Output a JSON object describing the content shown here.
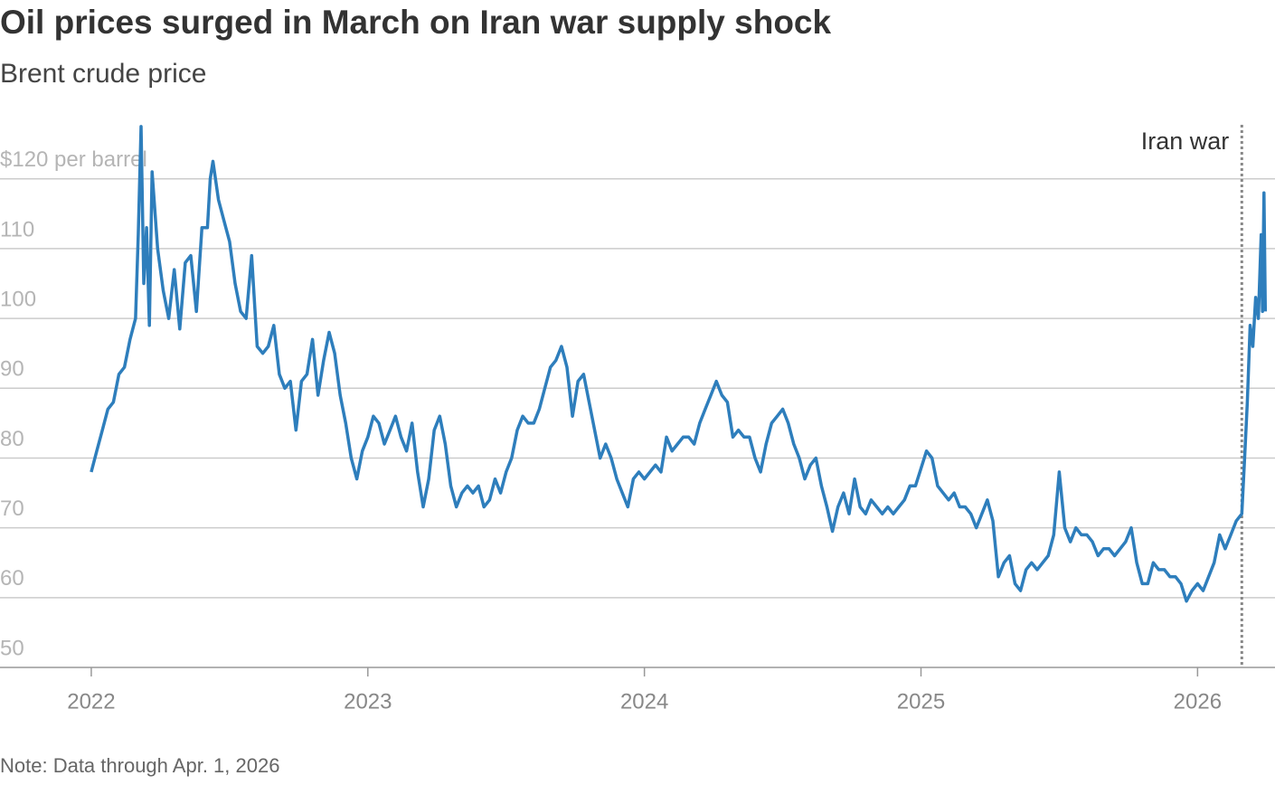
{
  "chart_data": {
    "type": "line",
    "title": "Oil prices surged in March on Iran war supply shock",
    "subtitle": "Brent crude price",
    "note": "Note: Data through Apr. 1, 2026",
    "color": "#2e7ebc",
    "grid": true,
    "xlim": [
      2021.67,
      2026.28
    ],
    "ylim": [
      50,
      128
    ],
    "xticks": [
      2022,
      2023,
      2024,
      2025,
      2026
    ],
    "yticks": [
      50,
      60,
      70,
      80,
      90,
      100,
      110,
      {
        "value": 120,
        "label": "$120 per barrel"
      }
    ],
    "annotation": {
      "text": "Iran war",
      "x": 2026.16
    },
    "x": [
      2022,
      2022.02,
      2022.04,
      2022.06,
      2022.08,
      2022.1,
      2022.12,
      2022.14,
      2022.16,
      2022.17,
      2022.18,
      2022.19,
      2022.2,
      2022.21,
      2022.22,
      2022.24,
      2022.26,
      2022.28,
      2022.3,
      2022.32,
      2022.34,
      2022.36,
      2022.38,
      2022.4,
      2022.42,
      2022.43,
      2022.44,
      2022.46,
      2022.48,
      2022.5,
      2022.52,
      2022.54,
      2022.56,
      2022.58,
      2022.6,
      2022.62,
      2022.64,
      2022.66,
      2022.68,
      2022.7,
      2022.72,
      2022.74,
      2022.76,
      2022.78,
      2022.8,
      2022.82,
      2022.84,
      2022.86,
      2022.88,
      2022.9,
      2022.92,
      2022.94,
      2022.96,
      2022.98,
      2023,
      2023.02,
      2023.04,
      2023.06,
      2023.08,
      2023.1,
      2023.12,
      2023.14,
      2023.16,
      2023.18,
      2023.2,
      2023.22,
      2023.24,
      2023.26,
      2023.28,
      2023.3,
      2023.32,
      2023.34,
      2023.36,
      2023.38,
      2023.4,
      2023.42,
      2023.44,
      2023.46,
      2023.48,
      2023.5,
      2023.52,
      2023.54,
      2023.56,
      2023.58,
      2023.6,
      2023.62,
      2023.64,
      2023.66,
      2023.68,
      2023.7,
      2023.72,
      2023.74,
      2023.76,
      2023.78,
      2023.8,
      2023.82,
      2023.84,
      2023.86,
      2023.88,
      2023.9,
      2023.92,
      2023.94,
      2023.96,
      2023.98,
      2024,
      2024.02,
      2024.04,
      2024.06,
      2024.08,
      2024.1,
      2024.12,
      2024.14,
      2024.16,
      2024.18,
      2024.2,
      2024.22,
      2024.24,
      2024.26,
      2024.28,
      2024.3,
      2024.32,
      2024.34,
      2024.36,
      2024.38,
      2024.4,
      2024.42,
      2024.44,
      2024.46,
      2024.48,
      2024.5,
      2024.52,
      2024.54,
      2024.56,
      2024.58,
      2024.6,
      2024.62,
      2024.64,
      2024.66,
      2024.68,
      2024.7,
      2024.72,
      2024.74,
      2024.76,
      2024.78,
      2024.8,
      2024.82,
      2024.84,
      2024.86,
      2024.88,
      2024.9,
      2024.92,
      2024.94,
      2024.96,
      2024.98,
      2025.02,
      2025.04,
      2025.06,
      2025.08,
      2025.1,
      2025.12,
      2025.14,
      2025.16,
      2025.18,
      2025.2,
      2025.22,
      2025.24,
      2025.26,
      2025.28,
      2025.3,
      2025.32,
      2025.34,
      2025.36,
      2025.38,
      2025.4,
      2025.42,
      2025.44,
      2025.46,
      2025.48,
      2025.5,
      2025.52,
      2025.54,
      2025.56,
      2025.58,
      2025.6,
      2025.62,
      2025.64,
      2025.66,
      2025.68,
      2025.7,
      2025.72,
      2025.74,
      2025.76,
      2025.78,
      2025.8,
      2025.82,
      2025.84,
      2025.86,
      2025.88,
      2025.9,
      2025.92,
      2025.94,
      2025.96,
      2025.98,
      2026,
      2026.02,
      2026.04,
      2026.06,
      2026.08,
      2026.1,
      2026.12,
      2026.14,
      2026.16,
      2026.17,
      2026.18,
      2026.19,
      2026.2,
      2026.21,
      2026.22,
      2026.23,
      2026.235,
      2026.24,
      2026.245
    ],
    "values": [
      78,
      81,
      84,
      87,
      88,
      92,
      93,
      97,
      100,
      112,
      127.5,
      105,
      113,
      99,
      121,
      110,
      104,
      100,
      107,
      98.5,
      108,
      109,
      101,
      113,
      113,
      120,
      122.5,
      117,
      114,
      111,
      105,
      101,
      100,
      109,
      96,
      95,
      96,
      99,
      92,
      90,
      91,
      84,
      91,
      92,
      97,
      89,
      94,
      98,
      95,
      89,
      85,
      80,
      77,
      81,
      83,
      86,
      85,
      82,
      84,
      86,
      83,
      81,
      85,
      78,
      73,
      77,
      84,
      86,
      82,
      76,
      73,
      75,
      76,
      75,
      76,
      73,
      74,
      77,
      75,
      78,
      80,
      84,
      86,
      85,
      85,
      87,
      90,
      93,
      94,
      96,
      93,
      86,
      91,
      92,
      88,
      84,
      80,
      82,
      80,
      77,
      75,
      73,
      77,
      78,
      77,
      78,
      79,
      78,
      83,
      81,
      82,
      83,
      83,
      82,
      85,
      87,
      89,
      91,
      89,
      88,
      83,
      84,
      83,
      83,
      80,
      78,
      82,
      85,
      86,
      87,
      85,
      82,
      80,
      77,
      79,
      80,
      76,
      73,
      69.5,
      73,
      75,
      72,
      77,
      73,
      72,
      74,
      73,
      72,
      73,
      72,
      73,
      74,
      76,
      76,
      81,
      80,
      76,
      75,
      74,
      75,
      73,
      73,
      72,
      70,
      72,
      74,
      71,
      63,
      65,
      66,
      62,
      61,
      64,
      65,
      64,
      65,
      66,
      69,
      78,
      70,
      68,
      70,
      69,
      69,
      68,
      66,
      67,
      67,
      66,
      67,
      68,
      70,
      65,
      62,
      62,
      65,
      64,
      64,
      63,
      63,
      62,
      59.5,
      61,
      62,
      61,
      63,
      65,
      69,
      67,
      69,
      71,
      72,
      80,
      88,
      99,
      96,
      103,
      100,
      112,
      101,
      118,
      101
    ]
  }
}
